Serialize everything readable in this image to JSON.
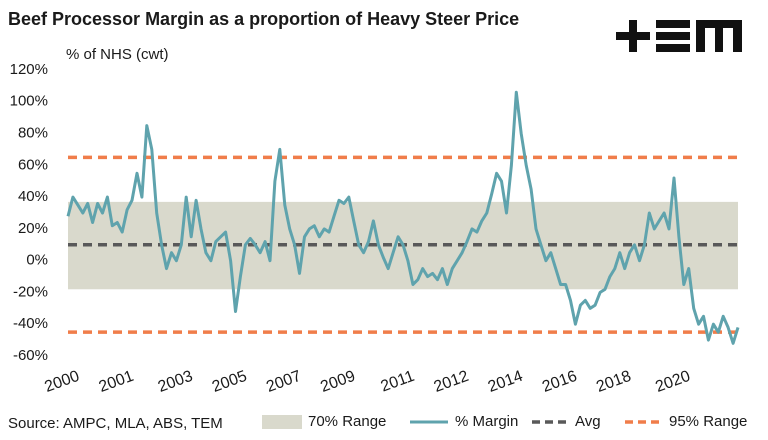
{
  "chart_data": {
    "type": "line",
    "title": "Beef Processor Margin as a proportion of Heavy Steer Price",
    "y_axis_label": "% of NHS (cwt)",
    "source": "Source: AMPC, MLA, ABS, TEM",
    "ylim": [
      -60,
      120
    ],
    "yticks": [
      {
        "value": -60,
        "label": "-60%"
      },
      {
        "value": -40,
        "label": "-40%"
      },
      {
        "value": -20,
        "label": "-20%"
      },
      {
        "value": 0,
        "label": "0%"
      },
      {
        "value": 20,
        "label": "20%"
      },
      {
        "value": 40,
        "label": "40%"
      },
      {
        "value": 60,
        "label": "60%"
      },
      {
        "value": 80,
        "label": "80%"
      },
      {
        "value": 100,
        "label": "100%"
      },
      {
        "value": 120,
        "label": "120%"
      }
    ],
    "categories": [
      null,
      "2000",
      null,
      null,
      null,
      null,
      null,
      null,
      null,
      null,
      null,
      null,
      "2001",
      null,
      null,
      null,
      null,
      null,
      null,
      null,
      null,
      null,
      null,
      null,
      "2003",
      null,
      null,
      null,
      null,
      null,
      null,
      null,
      null,
      null,
      null,
      "2005",
      null,
      null,
      null,
      null,
      null,
      null,
      null,
      null,
      null,
      null,
      "2007",
      null,
      null,
      null,
      null,
      null,
      null,
      null,
      null,
      null,
      null,
      "2009",
      null,
      null,
      null,
      null,
      null,
      null,
      null,
      null,
      null,
      null,
      null,
      "2011",
      null,
      null,
      null,
      null,
      null,
      null,
      null,
      null,
      null,
      null,
      "2012",
      null,
      null,
      null,
      null,
      null,
      null,
      null,
      null,
      null,
      null,
      "2014",
      null,
      null,
      null,
      null,
      null,
      null,
      null,
      null,
      null,
      null,
      "2016",
      null,
      null,
      null,
      null,
      null,
      null,
      null,
      null,
      null,
      null,
      "2018",
      null,
      null,
      null,
      null,
      null,
      null,
      null,
      null,
      null,
      null,
      null,
      "2020",
      null,
      null,
      null,
      null,
      null,
      null,
      null,
      null,
      null,
      null,
      null
    ],
    "band": {
      "name": "70% Range",
      "low": -18,
      "high": 37,
      "color": "#d9d9cc"
    },
    "reference_lines": [
      {
        "name": "Avg",
        "value": 10,
        "color": "#595959"
      },
      {
        "name": "95% Range",
        "value": 65,
        "color": "#f07d4a"
      },
      {
        "value": -45,
        "color": "#f07d4a"
      }
    ],
    "series": [
      {
        "name": "% Margin",
        "color": "#5fa3ad",
        "values": [
          28,
          40,
          35,
          30,
          36,
          24,
          36,
          30,
          40,
          22,
          24,
          18,
          32,
          38,
          55,
          40,
          85,
          70,
          30,
          10,
          -5,
          5,
          0,
          10,
          40,
          15,
          38,
          20,
          5,
          0,
          12,
          15,
          18,
          0,
          -32,
          -10,
          10,
          14,
          10,
          5,
          12,
          0,
          50,
          70,
          35,
          20,
          10,
          -8,
          15,
          20,
          22,
          15,
          20,
          18,
          28,
          38,
          36,
          40,
          25,
          10,
          5,
          12,
          25,
          10,
          2,
          -5,
          5,
          15,
          10,
          0,
          -15,
          -12,
          -5,
          -10,
          -8,
          -12,
          -5,
          -15,
          -5,
          0,
          5,
          12,
          20,
          18,
          25,
          30,
          42,
          55,
          50,
          30,
          60,
          106,
          80,
          60,
          45,
          20,
          10,
          0,
          5,
          -5,
          -15,
          -15,
          -25,
          -40,
          -28,
          -25,
          -30,
          -28,
          -20,
          -18,
          -10,
          -5,
          5,
          -5,
          5,
          10,
          0,
          10,
          30,
          20,
          25,
          30,
          20,
          52,
          15,
          -15,
          -5,
          -30,
          -40,
          -35,
          -50,
          -40,
          -45,
          -35,
          -42,
          -52,
          -42
        ]
      }
    ]
  }
}
